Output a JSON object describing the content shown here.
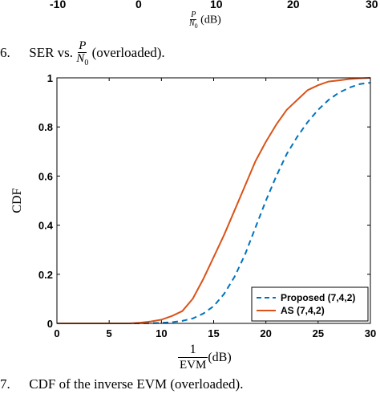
{
  "previous_figure": {
    "ticks": [
      "-10",
      "0",
      "10",
      "20",
      "30"
    ],
    "xlabel_frac_num": "P",
    "xlabel_frac_den": "N",
    "xlabel_frac_den_sub": "0",
    "xlabel_unit": "(dB)"
  },
  "caption_prev": {
    "number": "6.",
    "text_before": "SER vs.",
    "frac_num": "P",
    "frac_den": "N",
    "frac_den_sub": "0",
    "text_after": "(overloaded)."
  },
  "caption_main": {
    "number": "7.",
    "text": "CDF of the inverse EVM (overloaded)."
  },
  "chart_data": {
    "type": "line",
    "xlabel_num": "1",
    "xlabel_den": "EVM",
    "xlabel_unit": "(dB)",
    "ylabel": "CDF",
    "xlim": [
      0,
      30
    ],
    "ylim": [
      0,
      1
    ],
    "xticks": [
      0,
      5,
      10,
      15,
      20,
      25,
      30
    ],
    "yticks": [
      0,
      0.2,
      0.4,
      0.6,
      0.8,
      1
    ],
    "xtick_labels": [
      "0",
      "5",
      "10",
      "15",
      "20",
      "25",
      "30"
    ],
    "ytick_labels": [
      "0",
      "0.2",
      "0.4",
      "0.6",
      "0.8",
      "1"
    ],
    "legend_position": "bottom-right",
    "series": [
      {
        "name": "Proposed (7,4,2)",
        "color": "#0072BD",
        "style": "dashed",
        "x": [
          0,
          8,
          10,
          11,
          12,
          13,
          14,
          15,
          16,
          17,
          18,
          19,
          20,
          21,
          22,
          23,
          24,
          25,
          26,
          27,
          28,
          29,
          30
        ],
        "y": [
          0,
          0,
          0.002,
          0.005,
          0.01,
          0.02,
          0.04,
          0.07,
          0.12,
          0.19,
          0.28,
          0.39,
          0.5,
          0.6,
          0.69,
          0.76,
          0.82,
          0.87,
          0.91,
          0.94,
          0.96,
          0.975,
          0.98
        ]
      },
      {
        "name": "AS (7,4,2)",
        "color": "#D95319",
        "style": "solid",
        "x": [
          0,
          7,
          8,
          9,
          10,
          11,
          12,
          13,
          14,
          15,
          16,
          17,
          18,
          19,
          20,
          21,
          22,
          23,
          24,
          25,
          26,
          27,
          28,
          29,
          30
        ],
        "y": [
          0,
          0,
          0.003,
          0.008,
          0.015,
          0.03,
          0.05,
          0.1,
          0.18,
          0.27,
          0.36,
          0.46,
          0.56,
          0.66,
          0.74,
          0.81,
          0.87,
          0.91,
          0.95,
          0.97,
          0.985,
          0.99,
          0.995,
          0.998,
          1
        ]
      }
    ]
  }
}
